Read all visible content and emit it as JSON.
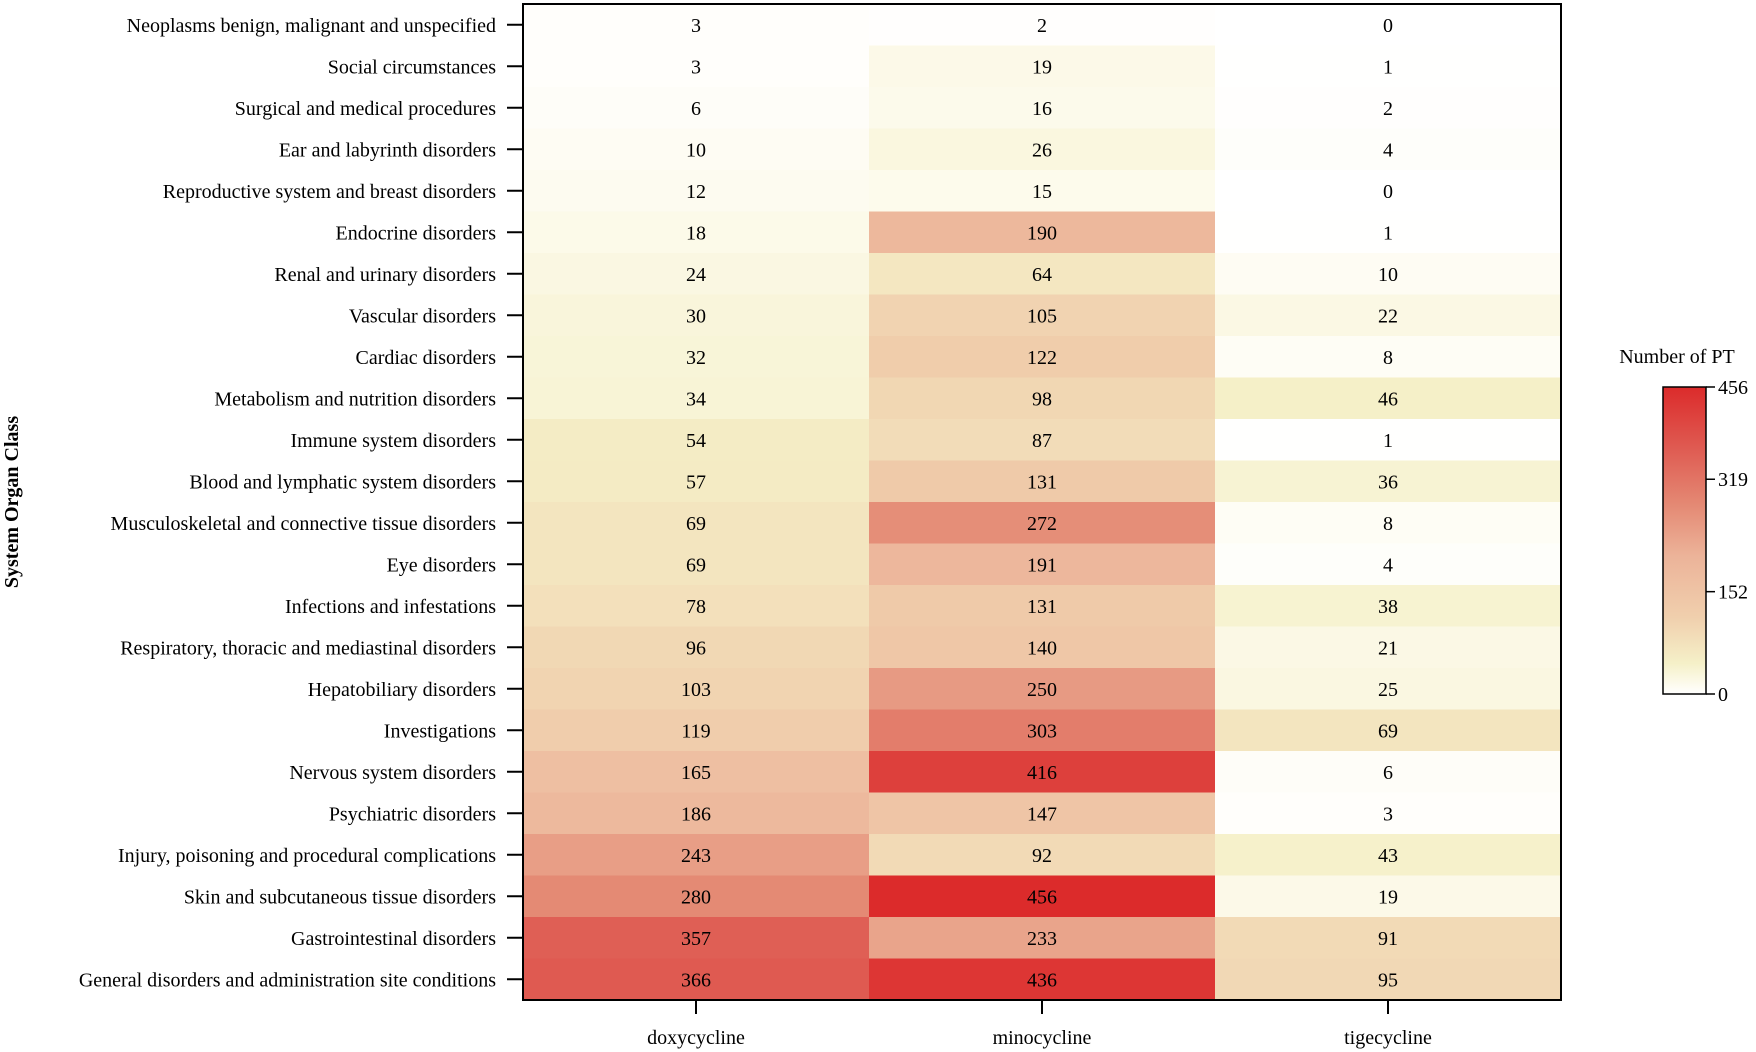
{
  "chart_data": {
    "type": "heatmap",
    "title": "",
    "xlabel": "",
    "ylabel": "System Organ Class",
    "columns": [
      "doxycycline",
      "minocycline",
      "tigecycline"
    ],
    "rows": [
      "Neoplasms benign, malignant and unspecified",
      "Social circumstances",
      "Surgical and medical procedures",
      "Ear and labyrinth disorders",
      "Reproductive system and breast disorders",
      "Endocrine disorders",
      "Renal and urinary disorders",
      "Vascular disorders",
      "Cardiac disorders",
      "Metabolism and nutrition disorders",
      "Immune system disorders",
      "Blood and lymphatic system disorders",
      "Musculoskeletal and connective tissue disorders",
      "Eye disorders",
      "Infections and infestations",
      "Respiratory, thoracic and mediastinal disorders",
      "Hepatobiliary disorders",
      "Investigations",
      "Nervous system disorders",
      "Psychiatric disorders",
      "Injury, poisoning and procedural complications",
      "Skin and subcutaneous tissue disorders",
      "Gastrointestinal disorders",
      "General disorders and administration site conditions"
    ],
    "values": [
      [
        3,
        2,
        0
      ],
      [
        3,
        19,
        1
      ],
      [
        6,
        16,
        2
      ],
      [
        10,
        26,
        4
      ],
      [
        12,
        15,
        0
      ],
      [
        18,
        190,
        1
      ],
      [
        24,
        64,
        10
      ],
      [
        30,
        105,
        22
      ],
      [
        32,
        122,
        8
      ],
      [
        34,
        98,
        46
      ],
      [
        54,
        87,
        1
      ],
      [
        57,
        131,
        36
      ],
      [
        69,
        272,
        8
      ],
      [
        69,
        191,
        4
      ],
      [
        78,
        131,
        38
      ],
      [
        96,
        140,
        21
      ],
      [
        103,
        250,
        25
      ],
      [
        119,
        303,
        69
      ],
      [
        165,
        416,
        6
      ],
      [
        186,
        147,
        3
      ],
      [
        243,
        92,
        43
      ],
      [
        280,
        456,
        19
      ],
      [
        357,
        233,
        91
      ],
      [
        366,
        436,
        95
      ]
    ],
    "legend": {
      "title": "Number of PT",
      "ticks": [
        456,
        319,
        152,
        0
      ],
      "min": 0,
      "max": 456,
      "position": "right"
    },
    "colors": {
      "low": "#ffffff",
      "mid_low": "#f5f0c8",
      "mid": "#f0cfad",
      "mid_high": "#e48873",
      "high": "#dc2b2b"
    }
  }
}
